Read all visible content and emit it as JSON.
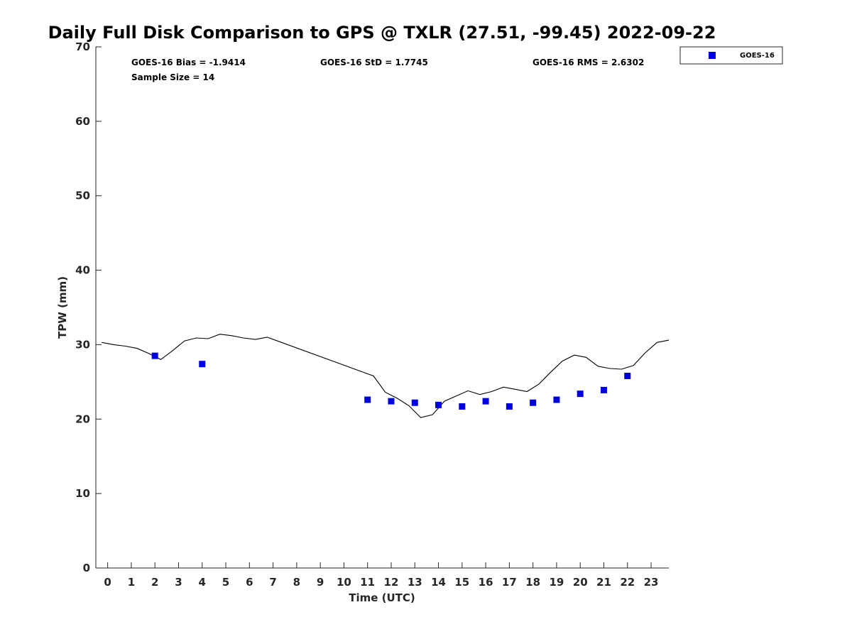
{
  "chart_data": {
    "type": "scatter",
    "title": "Daily Full Disk Comparison to GPS @ TXLR (27.51, -99.45) 2022-09-22",
    "xlabel": "Time (UTC)",
    "ylabel": "TPW (mm)",
    "xlim": [
      -0.5,
      23.75
    ],
    "ylim": [
      0,
      70
    ],
    "x_ticks": [
      0,
      1,
      2,
      3,
      4,
      5,
      6,
      7,
      8,
      9,
      10,
      11,
      12,
      13,
      14,
      15,
      16,
      17,
      18,
      19,
      20,
      21,
      22,
      23
    ],
    "x_tick_labels": [
      "0",
      "1",
      "2",
      "3",
      "4",
      "5",
      "6",
      "7",
      "8",
      "9",
      "10",
      "11",
      "12",
      "13",
      "14",
      "15",
      "16",
      "17",
      "18",
      "19",
      "20",
      "21",
      "22",
      "23"
    ],
    "y_ticks": [
      0,
      10,
      20,
      30,
      40,
      50,
      60,
      70
    ],
    "y_tick_labels": [
      "0",
      "10",
      "20",
      "30",
      "40",
      "50",
      "60",
      "70"
    ],
    "grid": false,
    "legend_position": "top-right-outside",
    "stats": {
      "bias": "GOES-16 Bias = -1.9414",
      "std": "GOES-16 StD = 1.7745",
      "rms": "GOES-16 RMS = 2.6302",
      "sample": "Sample Size = 14"
    },
    "series": [
      {
        "name": "GOES-16",
        "kind": "scatter",
        "marker": "square",
        "color": "#0000dd",
        "x": [
          2,
          4,
          11,
          12,
          13,
          14,
          15,
          16,
          17,
          18,
          19,
          20,
          21,
          22
        ],
        "y": [
          28.5,
          27.4,
          22.6,
          22.4,
          22.2,
          21.9,
          21.7,
          22.4,
          21.7,
          22.2,
          22.6,
          23.4,
          23.9,
          25.8
        ]
      },
      {
        "kind": "line",
        "color": "#000000",
        "x": [
          -0.25,
          0.25,
          0.75,
          1.25,
          1.75,
          2.25,
          2.75,
          3.25,
          3.75,
          4.25,
          4.75,
          5.25,
          5.75,
          6.25,
          6.75,
          11.25,
          11.75,
          12.25,
          12.75,
          13.25,
          13.75,
          14.25,
          14.75,
          15.25,
          15.75,
          16.25,
          16.75,
          17.25,
          17.75,
          18.25,
          18.75,
          19.25,
          19.75,
          20.25,
          20.75,
          21.25,
          21.75,
          22.25,
          22.75,
          23.25,
          23.75
        ],
        "y": [
          30.3,
          30.0,
          29.8,
          29.5,
          28.8,
          28.0,
          29.2,
          30.5,
          30.9,
          30.8,
          31.4,
          31.2,
          30.9,
          30.7,
          31.0,
          25.8,
          23.6,
          22.8,
          21.8,
          20.2,
          20.6,
          22.4,
          23.1,
          23.8,
          23.3,
          23.7,
          24.3,
          24.0,
          23.7,
          24.7,
          26.3,
          27.8,
          28.6,
          28.3,
          27.1,
          26.8,
          26.7,
          27.2,
          28.9,
          30.3,
          30.6
        ]
      }
    ]
  }
}
